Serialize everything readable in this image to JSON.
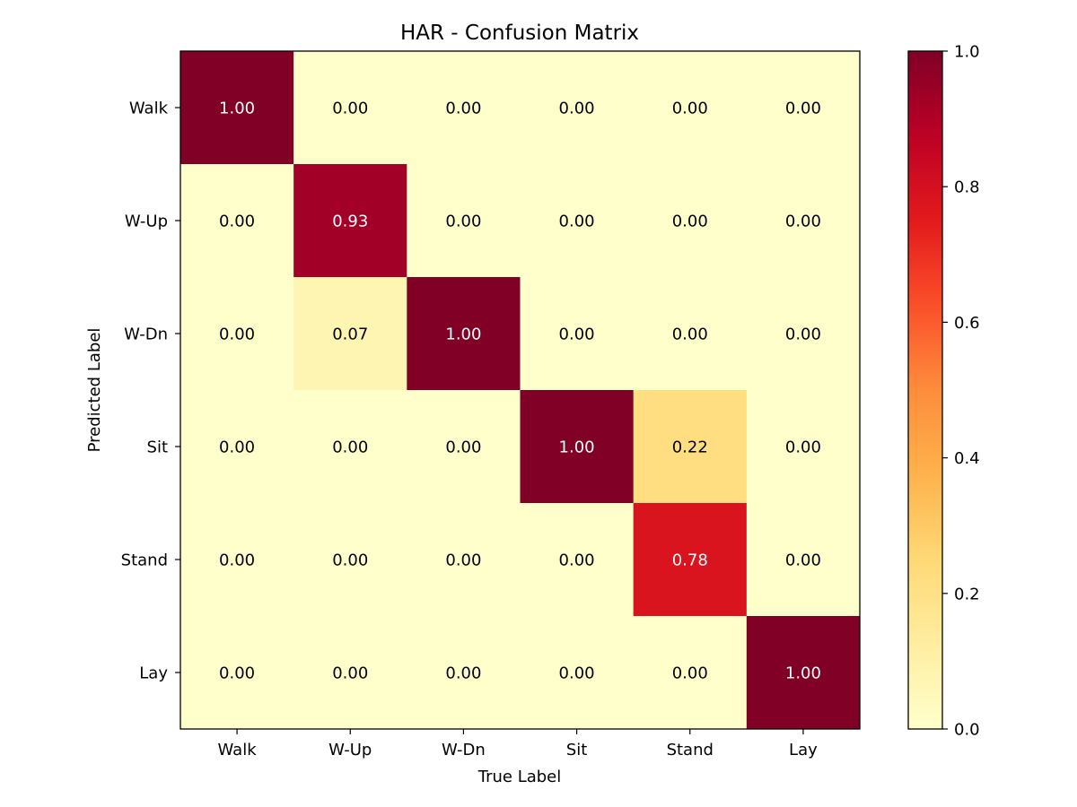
{
  "chart_data": {
    "type": "heatmap",
    "title": "HAR - Confusion Matrix",
    "xlabel": "True Label",
    "ylabel": "Predicted Label",
    "x_categories": [
      "Walk",
      "W-Up",
      "W-Dn",
      "Sit",
      "Stand",
      "Lay"
    ],
    "y_categories": [
      "Walk",
      "W-Up",
      "W-Dn",
      "Sit",
      "Stand",
      "Lay"
    ],
    "values": [
      [
        1.0,
        0.0,
        0.0,
        0.0,
        0.0,
        0.0
      ],
      [
        0.0,
        0.93,
        0.0,
        0.0,
        0.0,
        0.0
      ],
      [
        0.0,
        0.07,
        1.0,
        0.0,
        0.0,
        0.0
      ],
      [
        0.0,
        0.0,
        0.0,
        1.0,
        0.22,
        0.0
      ],
      [
        0.0,
        0.0,
        0.0,
        0.0,
        0.78,
        0.0
      ],
      [
        0.0,
        0.0,
        0.0,
        0.0,
        0.0,
        1.0
      ]
    ],
    "value_format": "0.00",
    "colormap": "YlOrRd",
    "vmin": 0.0,
    "vmax": 1.0,
    "colorbar_ticks": [
      "0.0",
      "0.2",
      "0.4",
      "0.6",
      "0.8",
      "1.0"
    ],
    "grid": false
  }
}
